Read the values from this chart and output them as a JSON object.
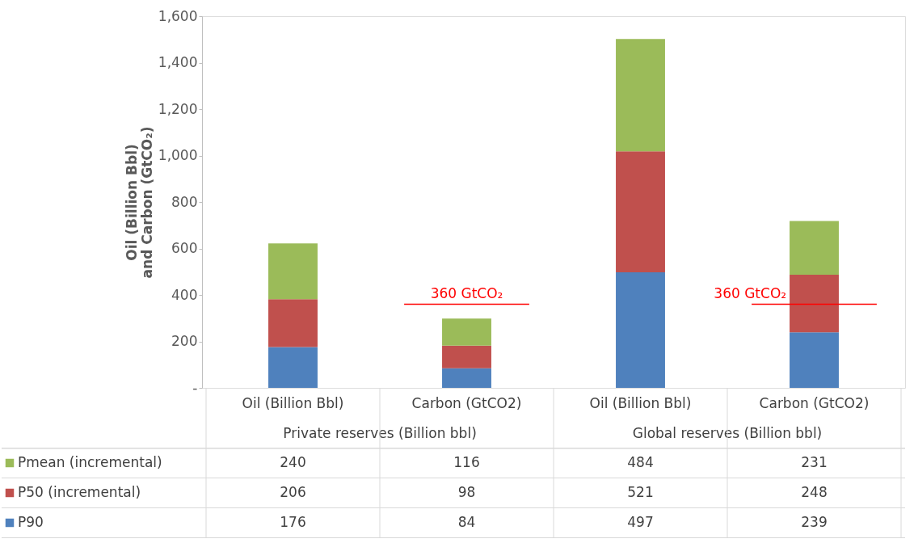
{
  "chart_data": {
    "type": "bar",
    "stacked": true,
    "ylabel": "Oil (Billion Bbl)  and Carbon (GtCO₂)",
    "categories": [
      "Oil (Billion Bbl)",
      "Carbon (GtCO2)",
      "Oil (Billion Bbl)",
      "Carbon (GtCO2)"
    ],
    "series": [
      {
        "name": "P90",
        "color": "#4f81bd",
        "values": [
          176,
          84,
          497,
          239
        ]
      },
      {
        "name": "P50 (incremental)",
        "color": "#c0504d",
        "values": [
          206,
          98,
          521,
          248
        ]
      },
      {
        "name": "Pmean (incremental)",
        "color": "#9bbb59",
        "values": [
          240,
          116,
          484,
          231
        ]
      }
    ],
    "ylim": [
      0,
      1600
    ],
    "yticks": [
      {
        "value": 0,
        "label": "-"
      },
      200,
      400,
      600,
      800,
      {
        "value": 1000,
        "label": "1,000"
      },
      {
        "value": 1200,
        "label": "1,200"
      },
      {
        "value": 1400,
        "label": "1,400"
      },
      {
        "value": 1600,
        "label": "1,600"
      }
    ],
    "annotations": [
      "Private reserves (Billion bbl)",
      "Global reserves (Billion bbl)"
    ],
    "ref_lines": [
      {
        "axis": "y",
        "value": 360,
        "label": "360 GtCO₂",
        "color": "#ff0000"
      }
    ],
    "data_labels": true,
    "legend": "bottom",
    "grid": false
  }
}
